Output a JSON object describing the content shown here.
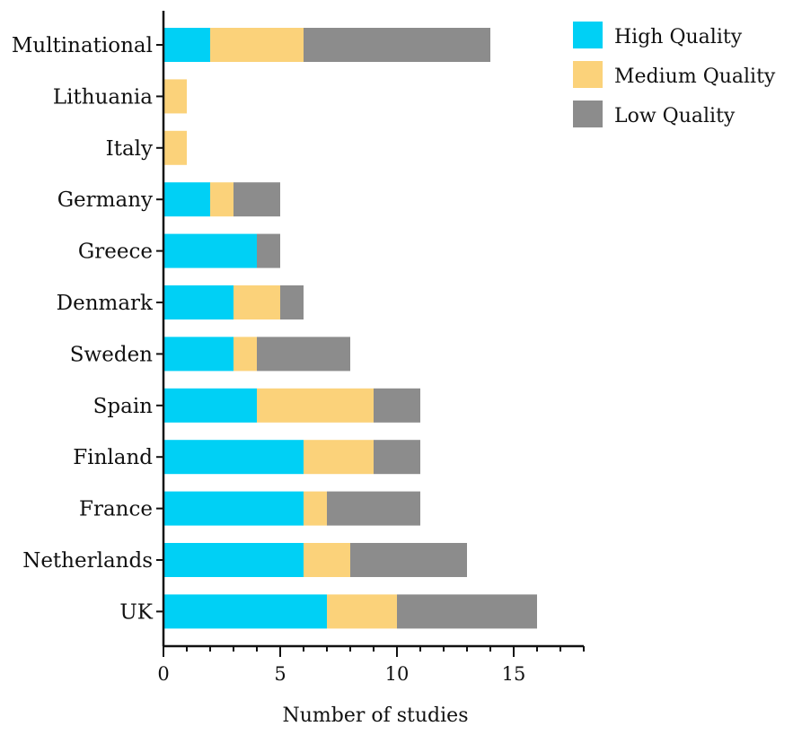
{
  "chart_data": {
    "type": "bar",
    "orientation": "horizontal",
    "stacked": true,
    "categories": [
      "UK",
      "Netherlands",
      "France",
      "Finland",
      "Spain",
      "Sweden",
      "Denmark",
      "Greece",
      "Germany",
      "Italy",
      "Lithuania",
      "Multinational"
    ],
    "series": [
      {
        "name": "High Quality",
        "color": "#00d0f5",
        "values": [
          7,
          6,
          6,
          6,
          4,
          3,
          3,
          4,
          2,
          0,
          0,
          2
        ]
      },
      {
        "name": "Medium Quality",
        "color": "#fbd27a",
        "values": [
          3,
          2,
          1,
          3,
          5,
          1,
          2,
          0,
          1,
          1,
          1,
          4
        ]
      },
      {
        "name": "Low Quality",
        "color": "#8c8c8c",
        "values": [
          6,
          5,
          4,
          2,
          2,
          4,
          1,
          1,
          2,
          0,
          0,
          8
        ]
      }
    ],
    "title": "",
    "xlabel": "Number of studies",
    "ylabel": "",
    "xlim": [
      0,
      18
    ],
    "xticks": [
      0,
      5,
      10,
      15
    ],
    "x_minor_step": 1,
    "grid": false,
    "legend_position": "top-right"
  }
}
